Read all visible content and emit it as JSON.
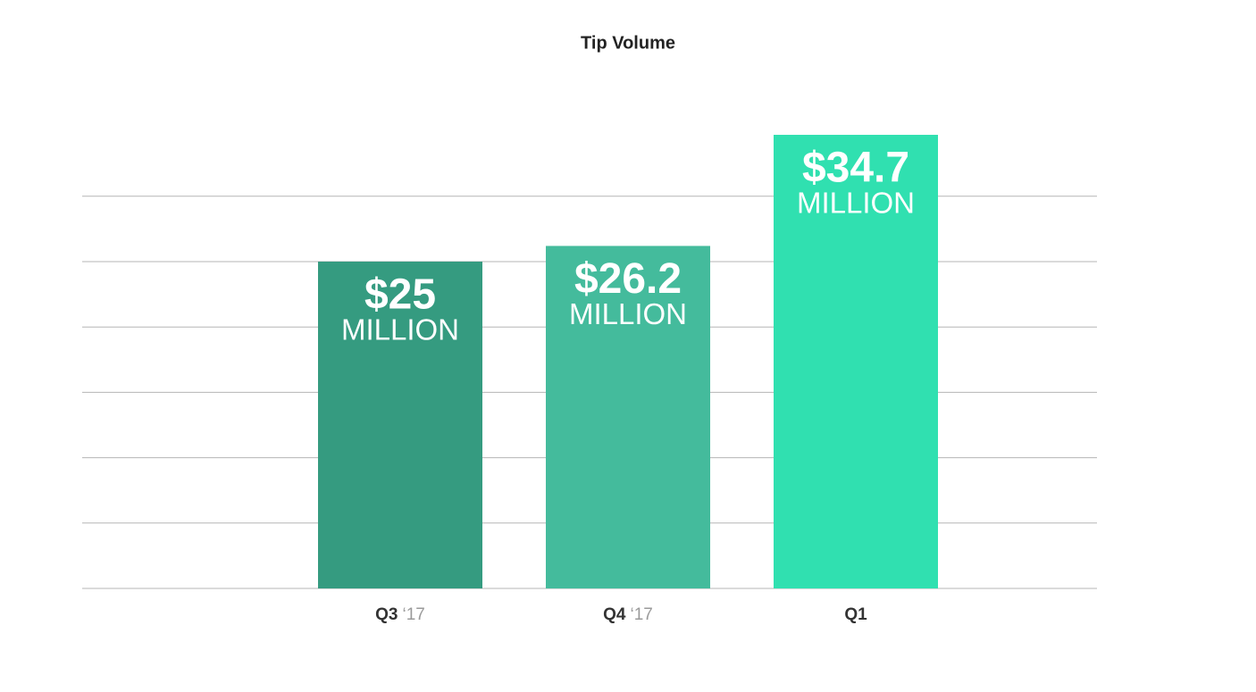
{
  "chart_data": {
    "type": "bar",
    "title": "Tip Volume",
    "categories": [
      "Q3",
      "Q4",
      "Q1"
    ],
    "category_suffixes": [
      "‘17",
      "‘17",
      null
    ],
    "values": [
      25,
      26.2,
      34.7
    ],
    "value_labels": [
      "$25",
      "$26.2",
      "$34.7"
    ],
    "value_unit": "MILLION",
    "colors": [
      "#359b80",
      "#44bb9c",
      "#30e0b0"
    ],
    "ylim": [
      0,
      35
    ],
    "yticks": [
      0,
      5,
      10,
      15,
      20,
      25,
      30
    ],
    "grid": true
  }
}
